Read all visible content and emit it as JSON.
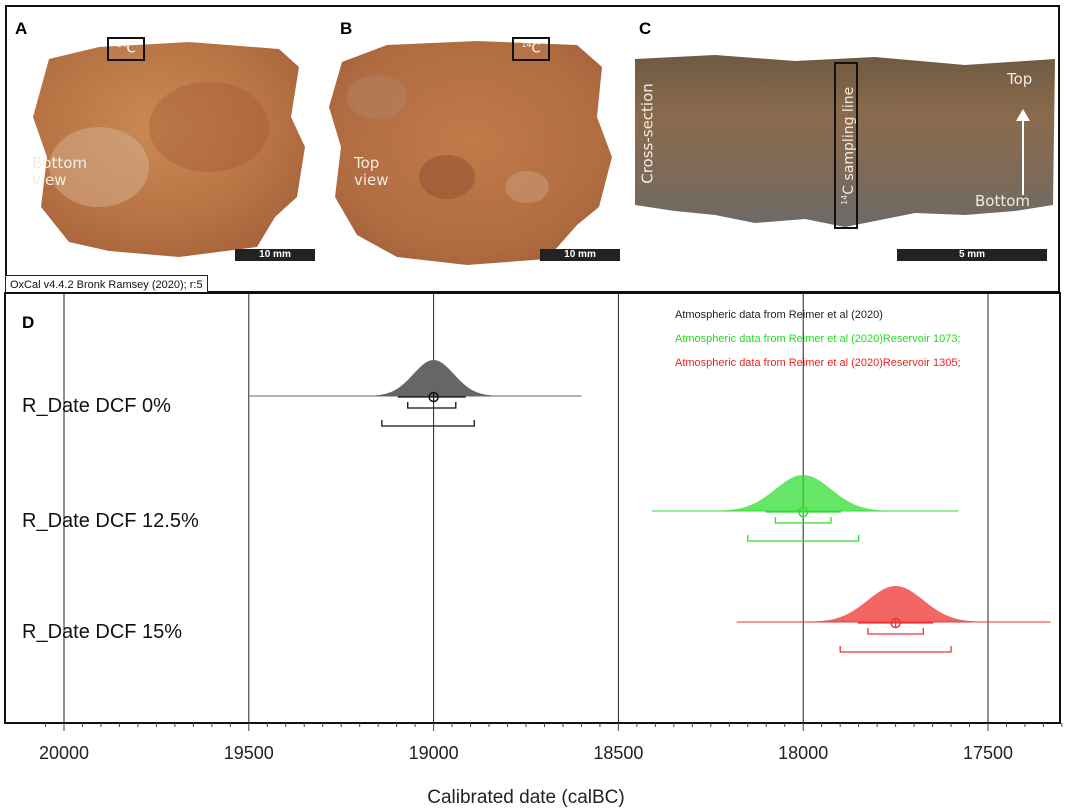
{
  "panels": {
    "A": {
      "letter": "A",
      "view_label": "Bottom\nview",
      "c14_label": "14",
      "c14_suffix": "C",
      "scale": "10 mm"
    },
    "B": {
      "letter": "B",
      "view_label": "Top\nview",
      "c14_label": "14",
      "c14_suffix": "C",
      "scale": "10 mm"
    },
    "C": {
      "letter": "C",
      "side_label": "Cross-section",
      "sampling_sup": "14",
      "sampling_label": "C  sampling line",
      "top_label": "Top",
      "bottom_label": "Bottom",
      "scale": "5 mm"
    },
    "D": {
      "letter": "D"
    }
  },
  "oxcal_header": "OxCal v4.4.2 Bronk Ramsey (2020); r:5",
  "colors": {
    "dcf0": "#666666",
    "dcf12": "#33dd33",
    "dcf15": "#ee3333",
    "photo_bg": "#ffffff"
  },
  "chart_data": {
    "type": "density",
    "xlabel": "Calibrated date (calBC)",
    "xlim": [
      20050,
      17300
    ],
    "x_ticks": [
      20000,
      19500,
      19000,
      18500,
      18000,
      17500
    ],
    "x_tick_labels": [
      "20000",
      "19500",
      "19000",
      "18500",
      "18000",
      "17500"
    ],
    "legend": [
      {
        "text": "Atmospheric data from Reimer et al (2020)",
        "color": "#222222"
      },
      {
        "text": "Atmospheric data from Reimer et al (2020)Reservoir 1073;",
        "color": "#22dd22"
      },
      {
        "text": "Atmospheric data from Reimer et al (2020)Reservoir 1305;",
        "color": "#ee2222"
      }
    ],
    "series": [
      {
        "name": "R_Date DCF 0%",
        "color": "#666666",
        "center": 19000,
        "sd": 55,
        "tail": [
          19500,
          18600
        ],
        "range_1sigma": [
          19070,
          18940
        ],
        "range_2sigma": [
          19140,
          18890
        ],
        "range_95": [
          19140,
          18890
        ]
      },
      {
        "name": "R_Date DCF 12.5%",
        "color": "#33dd33",
        "center": 18000,
        "sd": 75,
        "tail": [
          18410,
          17580
        ],
        "range_1sigma": [
          18075,
          17925
        ],
        "range_2sigma": [
          18150,
          17850
        ]
      },
      {
        "name": "R_Date DCF 15%",
        "color": "#ee3333",
        "center": 17750,
        "sd": 75,
        "tail": [
          18180,
          17330
        ],
        "range_1sigma": [
          17825,
          17675
        ],
        "range_2sigma": [
          17900,
          17600
        ]
      }
    ]
  }
}
